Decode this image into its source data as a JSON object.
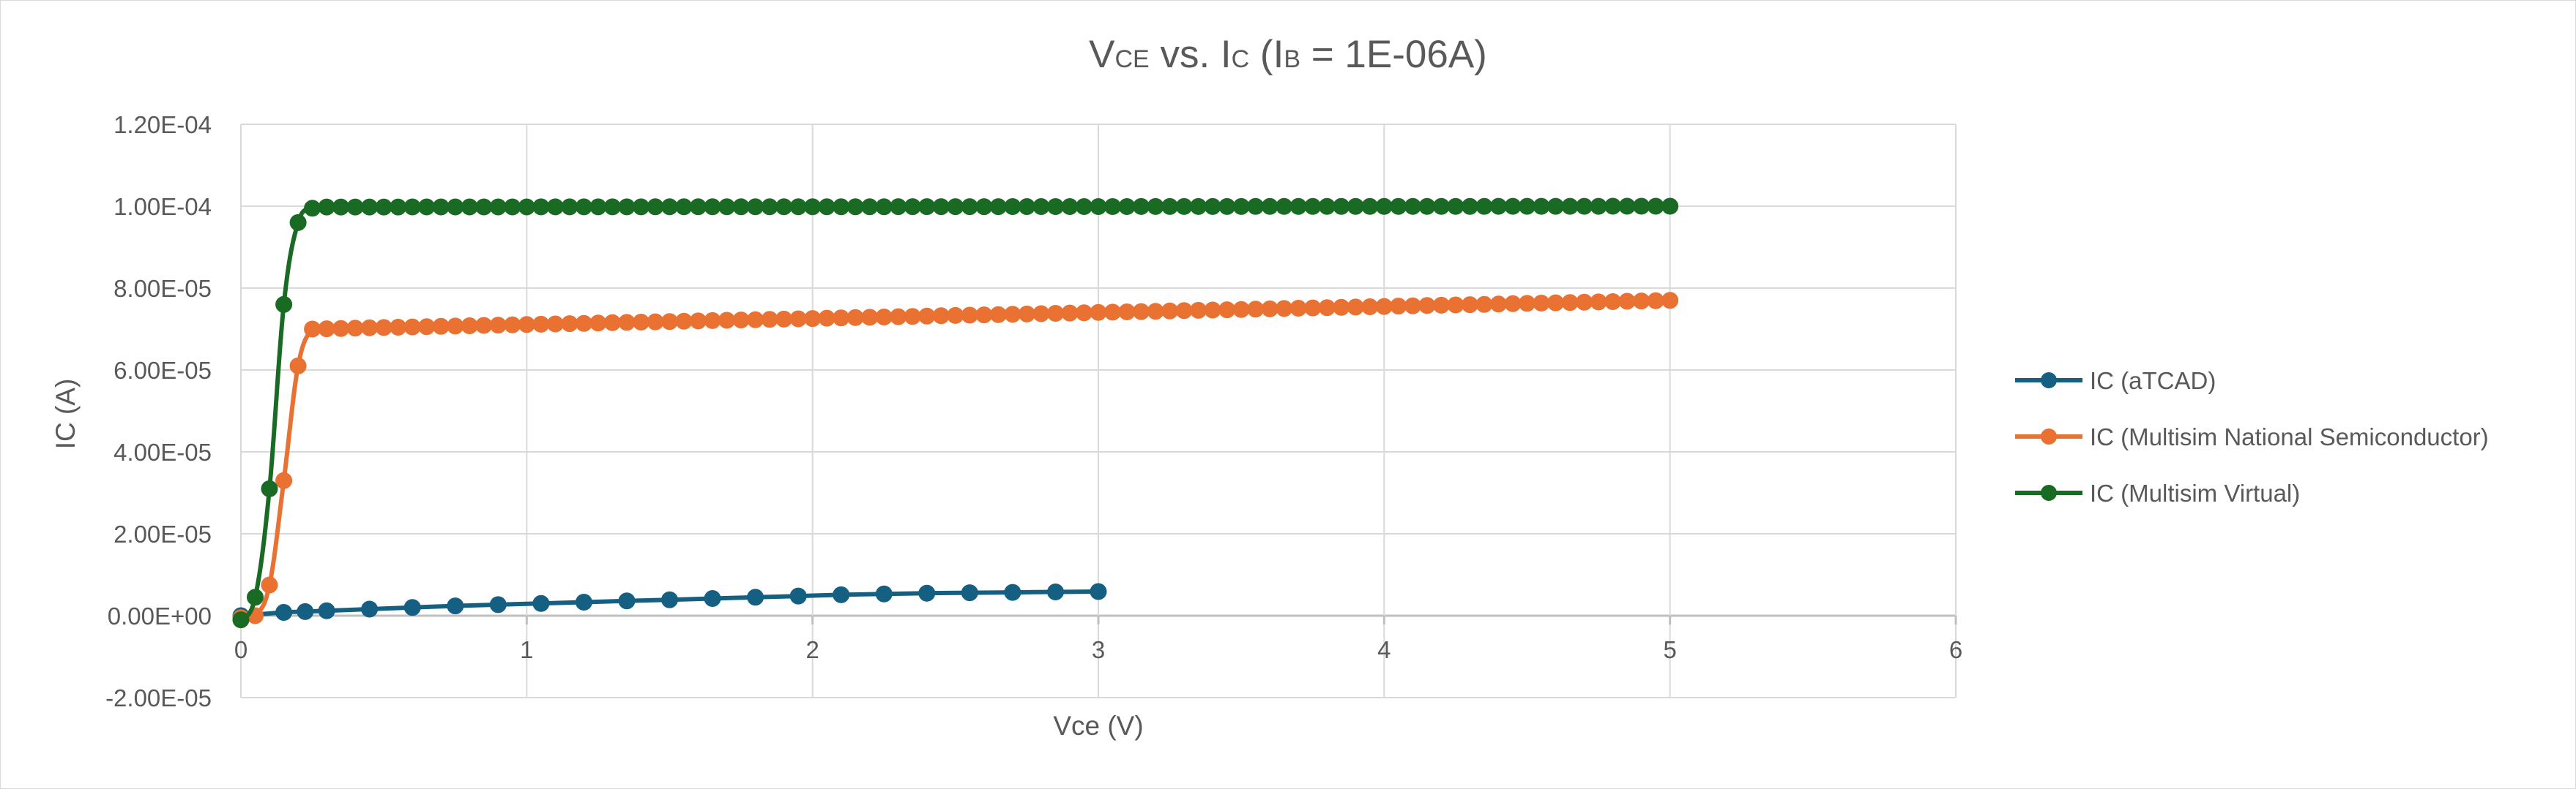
{
  "chart_data": {
    "type": "scatter",
    "title": {
      "parts": [
        {
          "text": "V",
          "sub": false
        },
        {
          "text": "CE",
          "sub": true
        },
        {
          "text": " vs. I",
          "sub": false
        },
        {
          "text": "C",
          "sub": true
        },
        {
          "text": " (I",
          "sub": false
        },
        {
          "text": "B",
          "sub": true
        },
        {
          "text": " = 1E-06A)",
          "sub": false
        }
      ]
    },
    "xlabel": "Vce (V)",
    "ylabel": "IC (A)",
    "xlim": [
      0,
      6
    ],
    "ylim": [
      -2e-05,
      0.00012
    ],
    "x_ticks": [
      0,
      1,
      2,
      3,
      4,
      5,
      6
    ],
    "x_tick_labels": [
      "0",
      "1",
      "2",
      "3",
      "4",
      "5",
      "6"
    ],
    "y_ticks": [
      -2e-05,
      0,
      2e-05,
      4e-05,
      6e-05,
      8e-05,
      0.0001,
      0.00012
    ],
    "y_tick_labels": [
      "-2.00E-05",
      "0.00E+00",
      "2.00E-05",
      "4.00E-05",
      "6.00E-05",
      "8.00E-05",
      "1.00E-04",
      "1.20E-04"
    ],
    "grid": true,
    "legend_position": "right",
    "series": [
      {
        "name": "IC (aTCAD)",
        "color": "#156082",
        "x": [
          0,
          0.15,
          0.225,
          0.3,
          0.45,
          0.6,
          0.75,
          0.9,
          1.05,
          1.2,
          1.35,
          1.5,
          1.65,
          1.8,
          1.95,
          2.1,
          2.25,
          2.4,
          2.55,
          2.7,
          2.85,
          3.0
        ],
        "y": [
          0,
          8e-07,
          1e-06,
          1.2e-06,
          1.6e-06,
          2e-06,
          2.4e-06,
          2.7e-06,
          3e-06,
          3.3e-06,
          3.6e-06,
          3.9e-06,
          4.2e-06,
          4.5e-06,
          4.8e-06,
          5.1e-06,
          5.3e-06,
          5.5e-06,
          5.6e-06,
          5.7e-06,
          5.8e-06,
          5.9e-06
        ]
      },
      {
        "name": "IC (Multisim National Semiconductor)",
        "color": "#e97132",
        "generator": {
          "x_start": 0.25,
          "x_end": 5.0,
          "x_step": 0.05,
          "y_start": 7e-05,
          "y_end": 7.7e-05
        },
        "x": [
          0,
          0.05,
          0.1,
          0.15,
          0.2
        ],
        "y": [
          -5e-07,
          0,
          7.5e-06,
          3.3e-05,
          6.1e-05
        ]
      },
      {
        "name": "IC (Multisim Virtual)",
        "color": "#196b24",
        "generator": {
          "x_start": 0.3,
          "x_end": 5.0,
          "x_step": 0.05,
          "y_start": 9.98e-05,
          "y_end": 0.0001
        },
        "x": [
          0,
          0.05,
          0.1,
          0.15,
          0.2,
          0.25
        ],
        "y": [
          -1e-06,
          4.5e-06,
          3.1e-05,
          7.6e-05,
          9.6e-05,
          9.95e-05
        ]
      }
    ]
  }
}
